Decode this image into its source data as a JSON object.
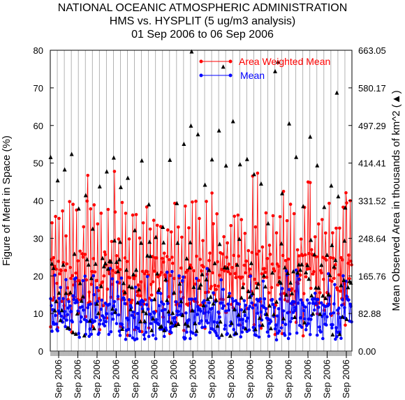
{
  "chart_data": {
    "type": "line",
    "title": [
      "NATIONAL OCEANIC ATMOSPHERIC ADMINISTRATION",
      "HMS vs. HYSPLIT (5 ug/m3 analysis)",
      "01 Sep 2006 to 06 Sep 2006"
    ],
    "ylabel": "Figure of Merit in Space (%)",
    "y2label": "Mean Observed Area in thousands of km^2 (▲)",
    "ylim": [
      0,
      80
    ],
    "y2lim": [
      0.0,
      663.05
    ],
    "y_ticks": [
      "0",
      "10",
      "20",
      "30",
      "40",
      "50",
      "60",
      "70",
      "80"
    ],
    "y2_ticks": [
      "0.00",
      "82.88",
      "165.76",
      "248.64",
      "331.52",
      "414.41",
      "497.29",
      "580.17",
      "663.05"
    ],
    "x_tick_labels": [
      "Sep 2006",
      "Sep 2006",
      "Sep 2006",
      "Sep 2006",
      "Sep 2006",
      "Sep 2006",
      "Sep 2006",
      "Sep 2006",
      "Sep 2006",
      "Sep 2006",
      "Sep 2006",
      "Sep 2006",
      "Sep 2006",
      "Sep 2006",
      "Sep 2006",
      "Sep 2006"
    ],
    "n_points": 430,
    "vertical_divisions": 43,
    "series": [
      {
        "name": "Area Weighted Mean",
        "color": "#ff0000",
        "marker": "circle",
        "range": [
          2,
          48
        ],
        "typical": 18
      },
      {
        "name": "Mean",
        "color": "#0000ff",
        "marker": "circle",
        "range": [
          2,
          22
        ],
        "typical": 8
      },
      {
        "name": "",
        "color": "#000000",
        "marker": "triangle",
        "axis": "right",
        "range": [
          0,
          80
        ],
        "typical": 20
      }
    ],
    "legend": {
      "position": "top-right",
      "entries": [
        "Area Weighted Mean",
        "Mean"
      ]
    },
    "grid": {
      "vertical": true,
      "horizontal": false
    }
  }
}
